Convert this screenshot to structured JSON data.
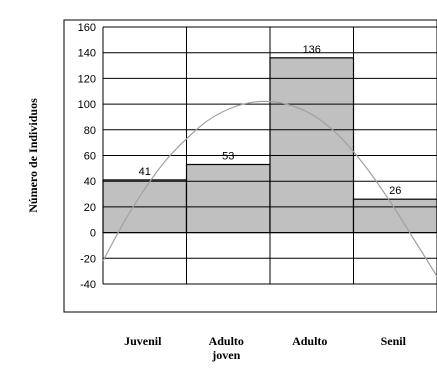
{
  "chart_data": {
    "type": "bar",
    "categories": [
      "Juvenil",
      "Adulto joven",
      "Adulto",
      "Senil"
    ],
    "category_lines": [
      [
        "Juvenil"
      ],
      [
        "Adulto",
        "joven"
      ],
      [
        "Adulto"
      ],
      [
        "Senil"
      ]
    ],
    "values": [
      41,
      53,
      136,
      26
    ],
    "data_labels": [
      "41",
      "53",
      "136",
      "26"
    ],
    "ylabel": "Número de Individuos",
    "xlabel": "",
    "title": "",
    "ylim": [
      -40,
      160
    ],
    "yticks": [
      -40,
      -20,
      0,
      20,
      40,
      60,
      80,
      100,
      120,
      140,
      160
    ],
    "grid": true,
    "bar_color": "#c0c0c0",
    "grid_color": "#000000",
    "curve_color": "#a0a0a0",
    "curve": {
      "type": "fitted-normal",
      "x": [
        0.0,
        0.25,
        0.5,
        0.75,
        1.0,
        1.25,
        1.5,
        1.75,
        2.0,
        2.25,
        2.5,
        2.75,
        3.0,
        3.25,
        3.5,
        3.75,
        4.0
      ],
      "y": [
        -22,
        8,
        34,
        56,
        73,
        87,
        96,
        101,
        102,
        99,
        92,
        80,
        63,
        42,
        18,
        -8,
        -34
      ]
    }
  }
}
